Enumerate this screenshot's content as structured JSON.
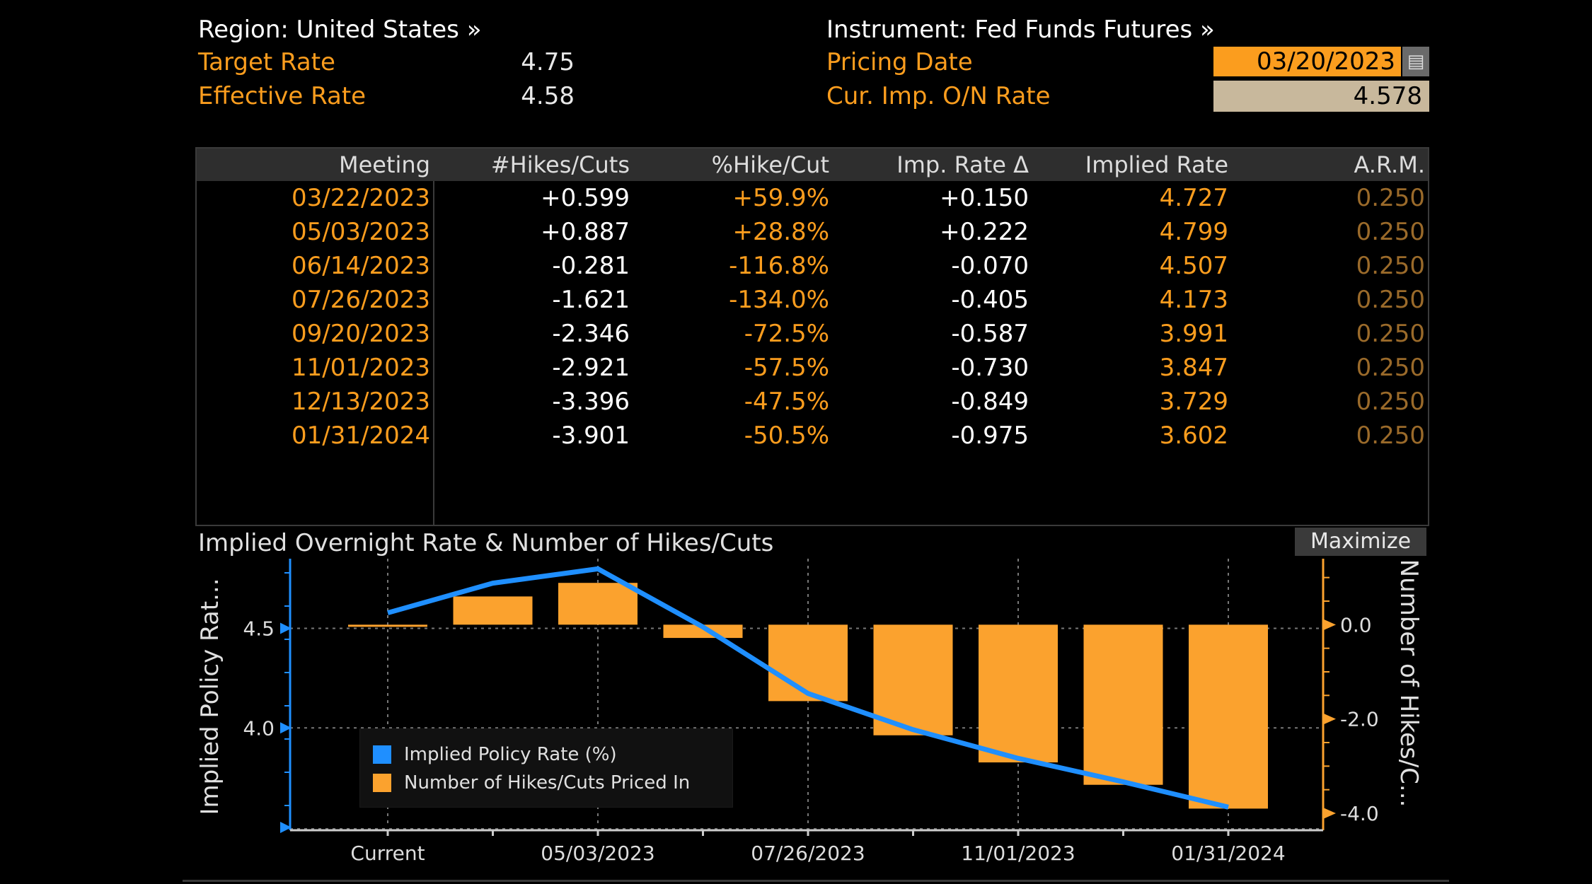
{
  "header": {
    "region_label": "Region: United States »",
    "target_rate_label": "Target Rate",
    "target_rate_value": "4.75",
    "effective_rate_label": "Effective Rate",
    "effective_rate_value": "4.58",
    "instrument_label": "Instrument: Fed Funds Futures »",
    "pricing_date_label": "Pricing Date",
    "pricing_date_value": "03/20/2023",
    "cur_imp_label": "Cur. Imp. O/N Rate",
    "cur_imp_value": "4.578",
    "calendar_icon": "calendar-icon"
  },
  "table": {
    "columns": [
      "Meeting",
      "#Hikes/Cuts",
      "%Hike/Cut",
      "Imp. Rate Δ",
      "Implied Rate",
      "A.R.M."
    ],
    "rows": [
      [
        "03/22/2023",
        "+0.599",
        "+59.9%",
        "+0.150",
        "4.727",
        "0.250"
      ],
      [
        "05/03/2023",
        "+0.887",
        "+28.8%",
        "+0.222",
        "4.799",
        "0.250"
      ],
      [
        "06/14/2023",
        "-0.281",
        "-116.8%",
        "-0.070",
        "4.507",
        "0.250"
      ],
      [
        "07/26/2023",
        "-1.621",
        "-134.0%",
        "-0.405",
        "4.173",
        "0.250"
      ],
      [
        "09/20/2023",
        "-2.346",
        "-72.5%",
        "-0.587",
        "3.991",
        "0.250"
      ],
      [
        "11/01/2023",
        "-2.921",
        "-57.5%",
        "-0.730",
        "3.847",
        "0.250"
      ],
      [
        "12/13/2023",
        "-3.396",
        "-47.5%",
        "-0.849",
        "3.729",
        "0.250"
      ],
      [
        "01/31/2024",
        "-3.901",
        "-50.5%",
        "-0.975",
        "3.602",
        "0.250"
      ]
    ]
  },
  "chart_title": "Implied Overnight Rate & Number of Hikes/Cuts",
  "maximize_label": "Maximize",
  "colors": {
    "accent": "#fb9d1e",
    "line": "#1f8fff",
    "bar": "#fba22e"
  },
  "chart_data": {
    "type": "bar+line",
    "title": "Implied Overnight Rate & Number of Hikes/Cuts",
    "categories": [
      "Current",
      "03/22/2023",
      "05/03/2023",
      "06/14/2023",
      "07/26/2023",
      "09/20/2023",
      "11/01/2023",
      "12/13/2023",
      "01/31/2024"
    ],
    "x_tick_labels": [
      "Current",
      "05/03/2023",
      "07/26/2023",
      "11/01/2023",
      "01/31/2024"
    ],
    "series": [
      {
        "name": "Implied Policy Rate (%)",
        "type": "line",
        "axis": "left",
        "values": [
          4.578,
          4.727,
          4.799,
          4.507,
          4.173,
          3.991,
          3.847,
          3.729,
          3.602
        ]
      },
      {
        "name": "Number of Hikes/Cuts Priced In",
        "type": "bar",
        "axis": "right",
        "values": [
          0,
          0.599,
          0.887,
          -0.281,
          -1.621,
          -2.346,
          -2.921,
          -3.396,
          -3.901
        ]
      }
    ],
    "ylabel_left": "Implied Policy Rat...",
    "ylabel_right": "Number of Hikes/C...",
    "yticks_left": [
      4.0,
      4.5
    ],
    "yticks_right": [
      "0.0",
      "-2.0",
      "-4.0"
    ],
    "ylim_left": [
      3.5,
      4.85
    ],
    "ylim_right": [
      -4.3,
      1.4
    ],
    "grid": true,
    "legend_position": "bottom-left"
  }
}
